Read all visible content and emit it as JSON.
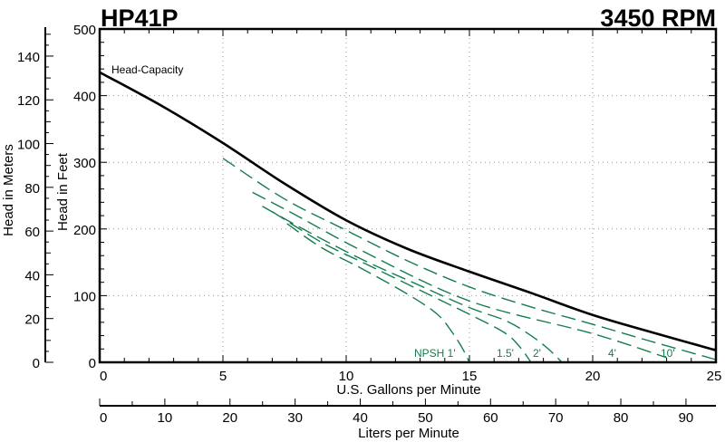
{
  "chart_data": {
    "type": "line",
    "title": "HP41P",
    "subtitle": "3450 RPM",
    "xlabel": "U.S. Gallons per Minute",
    "ylabel": "Head in Feet",
    "y2label": "Head in Meters",
    "x2label": "Liters per Minute",
    "xlim": [
      0,
      25
    ],
    "ylim": [
      0,
      500
    ],
    "y2lim": [
      0,
      152.4
    ],
    "x2lim": [
      0,
      94.6
    ],
    "grid": true,
    "xticks": [
      "0",
      "5",
      "10",
      "15",
      "20",
      "25"
    ],
    "yticks": [
      "0",
      "100",
      "200",
      "300",
      "400",
      "500"
    ],
    "y2ticks": [
      "0",
      "20",
      "40",
      "60",
      "80",
      "100",
      "120",
      "140"
    ],
    "x2ticks": [
      "0",
      "10",
      "20",
      "30",
      "40",
      "50",
      "60",
      "70",
      "80",
      "90"
    ],
    "colors": {
      "head": "#000000",
      "npsh": "#147d4c"
    },
    "series": [
      {
        "name": "Head-Capacity",
        "style": "solid",
        "x": [
          0,
          2.5,
          5,
          7.5,
          10,
          12.5,
          15,
          17.5,
          20,
          22.5,
          25
        ],
        "y": [
          435,
          385,
          329,
          268,
          213,
          170,
          136,
          104,
          71,
          44,
          18
        ]
      },
      {
        "name": "10'",
        "style": "dashed",
        "x": [
          5,
          7.5,
          10,
          12.5,
          15,
          17.5,
          20,
          22.5,
          25
        ],
        "y": [
          306,
          245,
          198,
          152,
          113,
          83,
          57,
          30,
          4
        ]
      },
      {
        "name": "4'",
        "style": "dashed",
        "x": [
          6.2,
          8,
          10.66,
          15,
          20,
          23
        ],
        "y": [
          255,
          220,
          167,
          92,
          43,
          7
        ]
      },
      {
        "name": "2'",
        "style": "dashed",
        "x": [
          6.6,
          8.5,
          10.66,
          13,
          15,
          16.5,
          17.5,
          18.2,
          18.75
        ],
        "y": [
          234,
          195,
          154,
          115,
          82,
          62,
          40,
          20,
          0
        ]
      },
      {
        "name": "1.5'",
        "style": "dashed",
        "x": [
          7,
          9,
          10.66,
          13,
          15,
          16.4,
          17,
          17.5
        ],
        "y": [
          226,
          180,
          150,
          108,
          72,
          45,
          25,
          0
        ]
      },
      {
        "name": "NPSH 1'",
        "style": "dashed",
        "x": [
          7.6,
          9,
          10.66,
          12.5,
          13.7,
          14.3,
          14.7,
          15
        ],
        "y": [
          208,
          172,
          140,
          102,
          72,
          45,
          22,
          0
        ]
      }
    ]
  }
}
